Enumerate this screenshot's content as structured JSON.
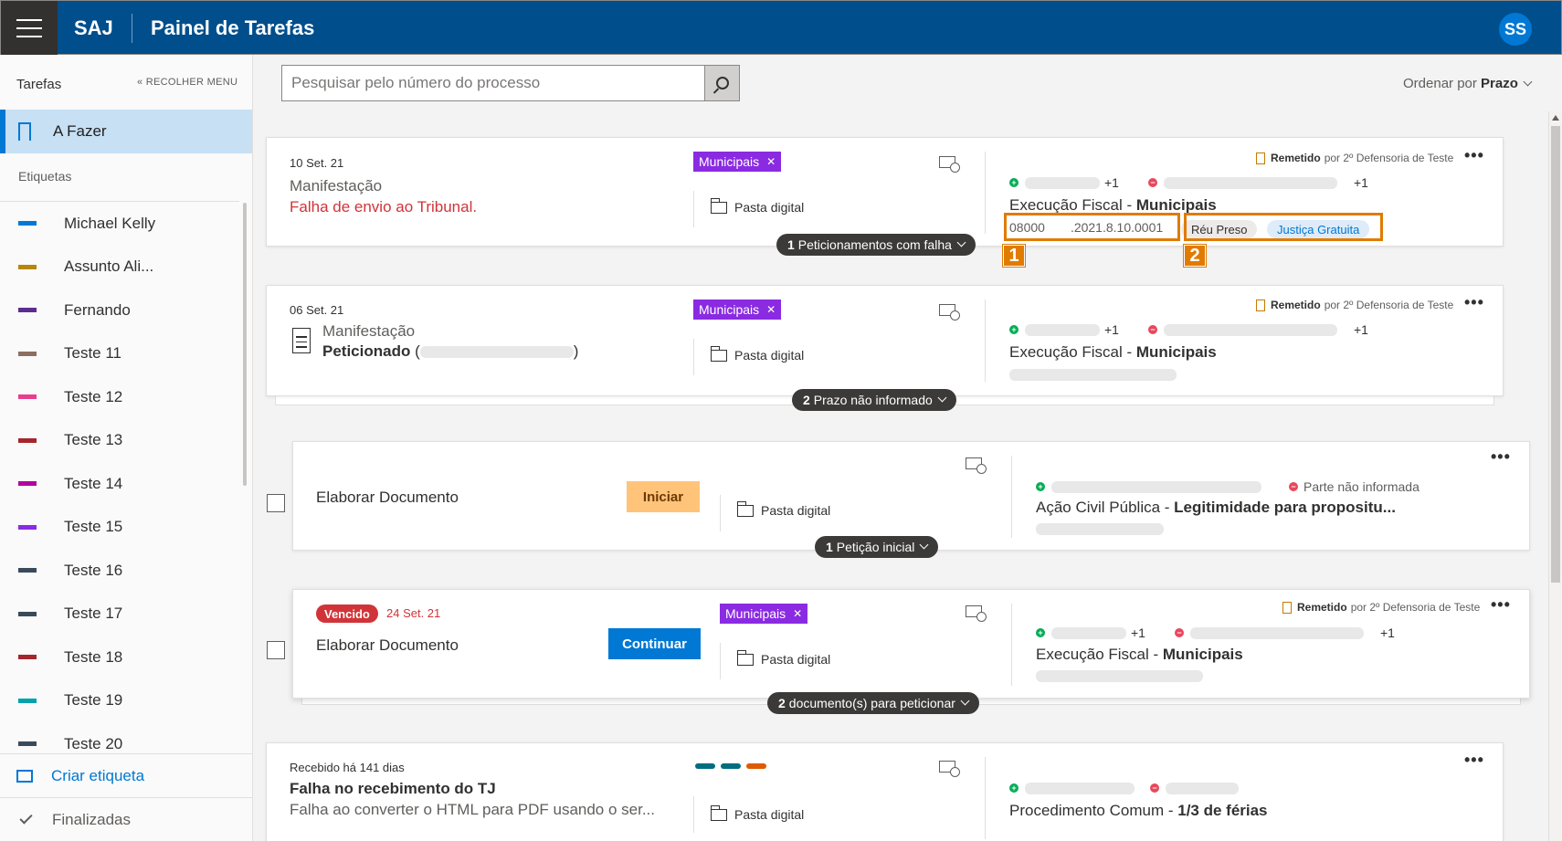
{
  "header": {
    "brand": "SAJ",
    "title": "Painel de Tarefas",
    "avatar": "SS"
  },
  "sidebar": {
    "tasks_label": "Tarefas",
    "collapse_label": "RECOLHER MENU",
    "active_item": "A Fazer",
    "tags_label": "Etiquetas",
    "tags": [
      {
        "name": "Michael Kelly",
        "color": "#0078d4"
      },
      {
        "name": "Assunto Ali...",
        "color": "#b8860b"
      },
      {
        "name": "Fernando",
        "color": "#5c2d91"
      },
      {
        "name": "Teste 11",
        "color": "#8d6e63"
      },
      {
        "name": "Teste 12",
        "color": "#e83e8c"
      },
      {
        "name": "Teste 13",
        "color": "#a4262c"
      },
      {
        "name": "Teste 14",
        "color": "#b4009e"
      },
      {
        "name": "Teste 15",
        "color": "#8a2be2"
      },
      {
        "name": "Teste 16",
        "color": "#3a4a5a"
      },
      {
        "name": "Teste 17",
        "color": "#3a4a5a"
      },
      {
        "name": "Teste 18",
        "color": "#a4262c"
      },
      {
        "name": "Teste 19",
        "color": "#00a2ad"
      },
      {
        "name": "Teste 20",
        "color": "#3a4a5a"
      }
    ],
    "create_tag": "Criar etiqueta",
    "finished": "Finalizadas"
  },
  "toolbar": {
    "search_placeholder": "Pesquisar pelo número do processo",
    "sort_label": "Ordenar por",
    "sort_value": "Prazo"
  },
  "common": {
    "pasta_digital": "Pasta digital",
    "remetido": "Remetido",
    "remetido_by": "por 2º Defensoria de Teste",
    "plus_one": "+1"
  },
  "cards": [
    {
      "date": "10 Set. 21",
      "line1": "Manifestação",
      "line2": "Falha de envio ao Tribunal.",
      "tag": "Municipais",
      "classe": "Execução Fiscal",
      "assunto": "Municipais",
      "process_prefix": "08000",
      "process_suffix": ".2021.8.10.0001",
      "pills": [
        "Réu Preso",
        "Justiça Gratuita"
      ],
      "expand_count": "1",
      "expand_label": "Peticionamentos com falha",
      "annotations": [
        "1",
        "2"
      ]
    },
    {
      "date": "06 Set. 21",
      "line1": "Manifestação",
      "line2": "Peticionado",
      "line2_paren_open": "(",
      "line2_paren_close": ")",
      "tag": "Municipais",
      "classe": "Execução Fiscal",
      "assunto": "Municipais",
      "expand_count": "2",
      "expand_label": "Prazo não informado"
    },
    {
      "title": "Elaborar Documento",
      "button": "Iniciar",
      "classe": "Ação Civil Pública",
      "assunto": "Legitimidade para propositu...",
      "party_missing": "Parte não informada",
      "expand_count": "1",
      "expand_label": "Petição inicial"
    },
    {
      "status": "Vencido",
      "date": "24 Set. 21",
      "title": "Elaborar Documento",
      "button": "Continuar",
      "tag": "Municipais",
      "classe": "Execução Fiscal",
      "assunto": "Municipais",
      "expand_count": "2",
      "expand_label": "documento(s) para peticionar"
    },
    {
      "date": "Recebido há 141 dias",
      "line1": "Falha no recebimento do TJ",
      "line2": "Falha ao converter o HTML para PDF usando o ser...",
      "color_bars": [
        "#006e7f",
        "#006e7f",
        "#e05a00"
      ],
      "classe": "Procedimento Comum",
      "assunto": "1/3 de férias"
    }
  ]
}
